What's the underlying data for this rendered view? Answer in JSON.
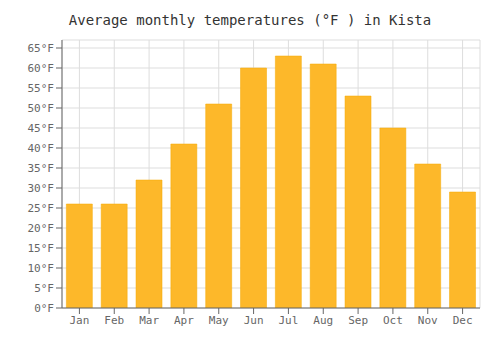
{
  "chart_data": {
    "type": "bar",
    "title": "Average monthly temperatures (°F ) in Kista",
    "categories": [
      "Jan",
      "Feb",
      "Mar",
      "Apr",
      "May",
      "Jun",
      "Jul",
      "Aug",
      "Sep",
      "Oct",
      "Nov",
      "Dec"
    ],
    "values": [
      26,
      26,
      32,
      41,
      51,
      60,
      63,
      61,
      53,
      45,
      36,
      29
    ],
    "color": "#FDB82A",
    "ylim": [
      0,
      67
    ],
    "yticks": [
      {
        "value": 0,
        "label": "0°F"
      },
      {
        "value": 5,
        "label": "5°F"
      },
      {
        "value": 10,
        "label": "10°F"
      },
      {
        "value": 15,
        "label": "15°F"
      },
      {
        "value": 20,
        "label": "20°F"
      },
      {
        "value": 25,
        "label": "25°F"
      },
      {
        "value": 30,
        "label": "30°F"
      },
      {
        "value": 35,
        "label": "35°F"
      },
      {
        "value": 40,
        "label": "40°F"
      },
      {
        "value": 45,
        "label": "45°F"
      },
      {
        "value": 50,
        "label": "50°F"
      },
      {
        "value": 55,
        "label": "55°F"
      },
      {
        "value": 60,
        "label": "60°F"
      },
      {
        "value": 65,
        "label": "65°F"
      }
    ],
    "grid": true
  }
}
